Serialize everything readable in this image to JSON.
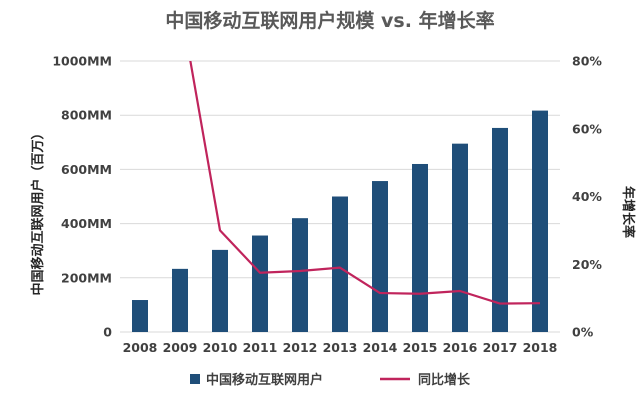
{
  "chart_data": {
    "type": "bar",
    "title": "中国移动互联网用户规模 vs. 年增长率",
    "categories": [
      "2008",
      "2009",
      "2010",
      "2011",
      "2012",
      "2013",
      "2014",
      "2015",
      "2016",
      "2017",
      "2018"
    ],
    "series": [
      {
        "name": "中国移动互联网用户",
        "type": "bar",
        "axis": "left",
        "color": "#1f4e79",
        "values": [
          118,
          233,
          303,
          356,
          420,
          500,
          557,
          620,
          695,
          753,
          817
        ]
      },
      {
        "name": "同比增长",
        "type": "line",
        "axis": "right",
        "color": "#c0245c",
        "values": [
          null,
          97.5,
          30.0,
          17.5,
          18.0,
          19.0,
          11.5,
          11.3,
          12.1,
          8.4,
          8.5
        ]
      }
    ],
    "ylabel": "中国移动互联网用户（百万）",
    "y2label": "年增长率",
    "ylim": [
      0,
      1000
    ],
    "y2lim": [
      0,
      80
    ],
    "yticks": [
      "0",
      "200MM",
      "400MM",
      "600MM",
      "800MM",
      "1000MM"
    ],
    "y2ticks": [
      "0%",
      "20%",
      "40%",
      "60%",
      "80%"
    ],
    "grid": true,
    "legend": "bottom"
  }
}
